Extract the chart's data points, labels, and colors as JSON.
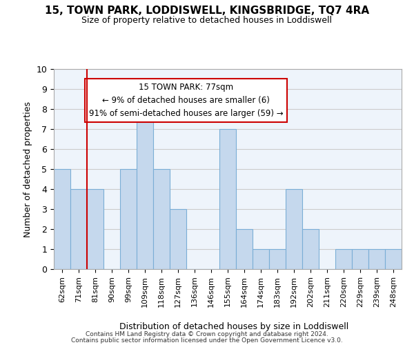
{
  "title1": "15, TOWN PARK, LODDISWELL, KINGSBRIDGE, TQ7 4RA",
  "title2": "Size of property relative to detached houses in Loddiswell",
  "xlabel": "Distribution of detached houses by size in Loddiswell",
  "ylabel": "Number of detached properties",
  "bin_labels": [
    "62sqm",
    "71sqm",
    "81sqm",
    "90sqm",
    "99sqm",
    "109sqm",
    "118sqm",
    "127sqm",
    "136sqm",
    "146sqm",
    "155sqm",
    "164sqm",
    "174sqm",
    "183sqm",
    "192sqm",
    "202sqm",
    "211sqm",
    "220sqm",
    "229sqm",
    "239sqm",
    "248sqm"
  ],
  "counts": [
    5,
    4,
    4,
    0,
    5,
    8,
    5,
    3,
    0,
    0,
    7,
    2,
    1,
    1,
    4,
    2,
    0,
    1,
    1,
    1,
    1
  ],
  "bar_color": "#c5d8ed",
  "bar_edge_color": "#7aaed6",
  "grid_color": "#cccccc",
  "redline_bin_index": 2,
  "annotation_title": "15 TOWN PARK: 77sqm",
  "annotation_line1": "← 9% of detached houses are smaller (6)",
  "annotation_line2": "91% of semi-detached houses are larger (59) →",
  "annotation_box_color": "#ffffff",
  "annotation_border_color": "#cc0000",
  "redline_color": "#cc0000",
  "ylim": [
    0,
    10
  ],
  "yticks": [
    0,
    1,
    2,
    3,
    4,
    5,
    6,
    7,
    8,
    9,
    10
  ],
  "footer1": "Contains HM Land Registry data © Crown copyright and database right 2024.",
  "footer2": "Contains public sector information licensed under the Open Government Licence v3.0."
}
